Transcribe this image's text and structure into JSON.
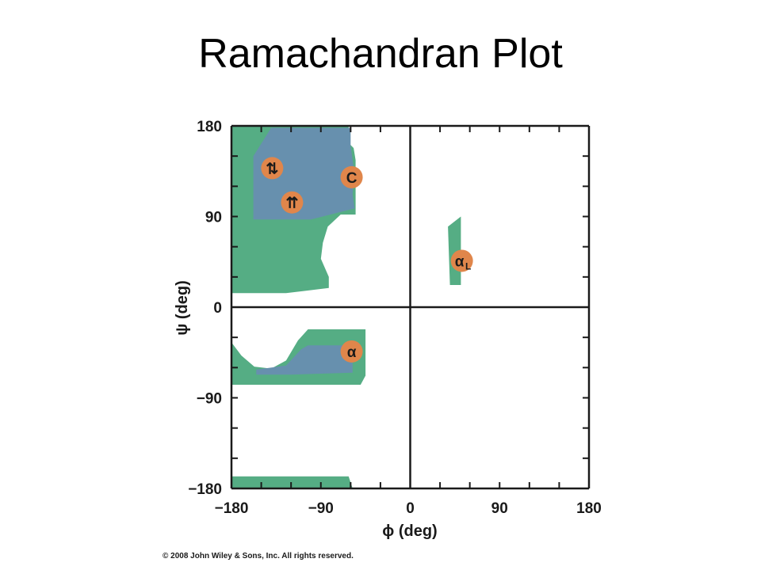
{
  "slide": {
    "title": "Ramachandran Plot",
    "copyright": "© 2008 John Wiley & Sons, Inc. All rights reserved."
  },
  "chart_data": {
    "type": "scatter",
    "xlabel": "ϕ (deg)",
    "ylabel": "ψ (deg)",
    "xlim": [
      -180,
      180
    ],
    "ylim": [
      -180,
      180
    ],
    "xticks": [
      -180,
      -90,
      0,
      90,
      180
    ],
    "xtick_labels": [
      "−180",
      "−90",
      "0",
      "90",
      "180"
    ],
    "yticks": [
      -180,
      -90,
      0,
      90,
      180
    ],
    "ytick_labels": [
      "−180",
      "−90",
      "0",
      "90",
      "180"
    ],
    "grid": false,
    "colors": {
      "allowed_region": "#55ad84",
      "favorable_region": "#6790ae",
      "marker": "#e0864b",
      "axis": "#1a1a1a"
    },
    "regions": [
      {
        "kind": "allowed",
        "points": [
          [
            -180,
            180
          ],
          [
            -62,
            180
          ],
          [
            -62,
            163
          ],
          [
            -57,
            158
          ],
          [
            -55,
            146
          ],
          [
            -55,
            92
          ],
          [
            -70,
            92
          ],
          [
            -83,
            80
          ],
          [
            -88,
            64
          ],
          [
            -90,
            48
          ],
          [
            -82,
            30
          ],
          [
            -82,
            19
          ],
          [
            -125,
            14
          ],
          [
            -180,
            14
          ]
        ]
      },
      {
        "kind": "favorable",
        "points": [
          [
            -140,
            178
          ],
          [
            -60,
            178
          ],
          [
            -60,
            160
          ],
          [
            -58,
            146
          ],
          [
            -56,
            133
          ],
          [
            -58,
            112
          ],
          [
            -56,
            98
          ],
          [
            -100,
            87
          ],
          [
            -158,
            87
          ],
          [
            -158,
            150
          ]
        ]
      },
      {
        "kind": "allowed",
        "points": [
          [
            -180,
            -35
          ],
          [
            -170,
            -48
          ],
          [
            -157,
            -59
          ],
          [
            -140,
            -61
          ],
          [
            -125,
            -53
          ],
          [
            -113,
            -33
          ],
          [
            -103,
            -22
          ],
          [
            -45,
            -22
          ],
          [
            -45,
            -68
          ],
          [
            -50,
            -77
          ],
          [
            -180,
            -77
          ]
        ]
      },
      {
        "kind": "favorable",
        "points": [
          [
            -155,
            -62
          ],
          [
            -125,
            -58
          ],
          [
            -110,
            -42
          ],
          [
            -103,
            -38
          ],
          [
            -58,
            -38
          ],
          [
            -58,
            -65
          ],
          [
            -120,
            -67
          ],
          [
            -155,
            -67
          ]
        ]
      },
      {
        "kind": "allowed",
        "points": [
          [
            -180,
            -168
          ],
          [
            -62,
            -168
          ],
          [
            -58,
            -180
          ],
          [
            -180,
            -180
          ]
        ]
      },
      {
        "kind": "allowed",
        "points": [
          [
            38,
            80
          ],
          [
            51,
            90
          ],
          [
            51,
            22
          ],
          [
            40,
            22
          ]
        ]
      }
    ],
    "markers": [
      {
        "label": "⇅",
        "sub": "",
        "phi": -139,
        "psi": 138
      },
      {
        "label": "C",
        "sub": "",
        "phi": -59,
        "psi": 129
      },
      {
        "label": "⇈",
        "sub": "",
        "phi": -119,
        "psi": 104
      },
      {
        "label": "α",
        "sub": "L",
        "phi": 52,
        "psi": 46
      },
      {
        "label": "α",
        "sub": "",
        "phi": -59,
        "psi": -44
      }
    ]
  }
}
